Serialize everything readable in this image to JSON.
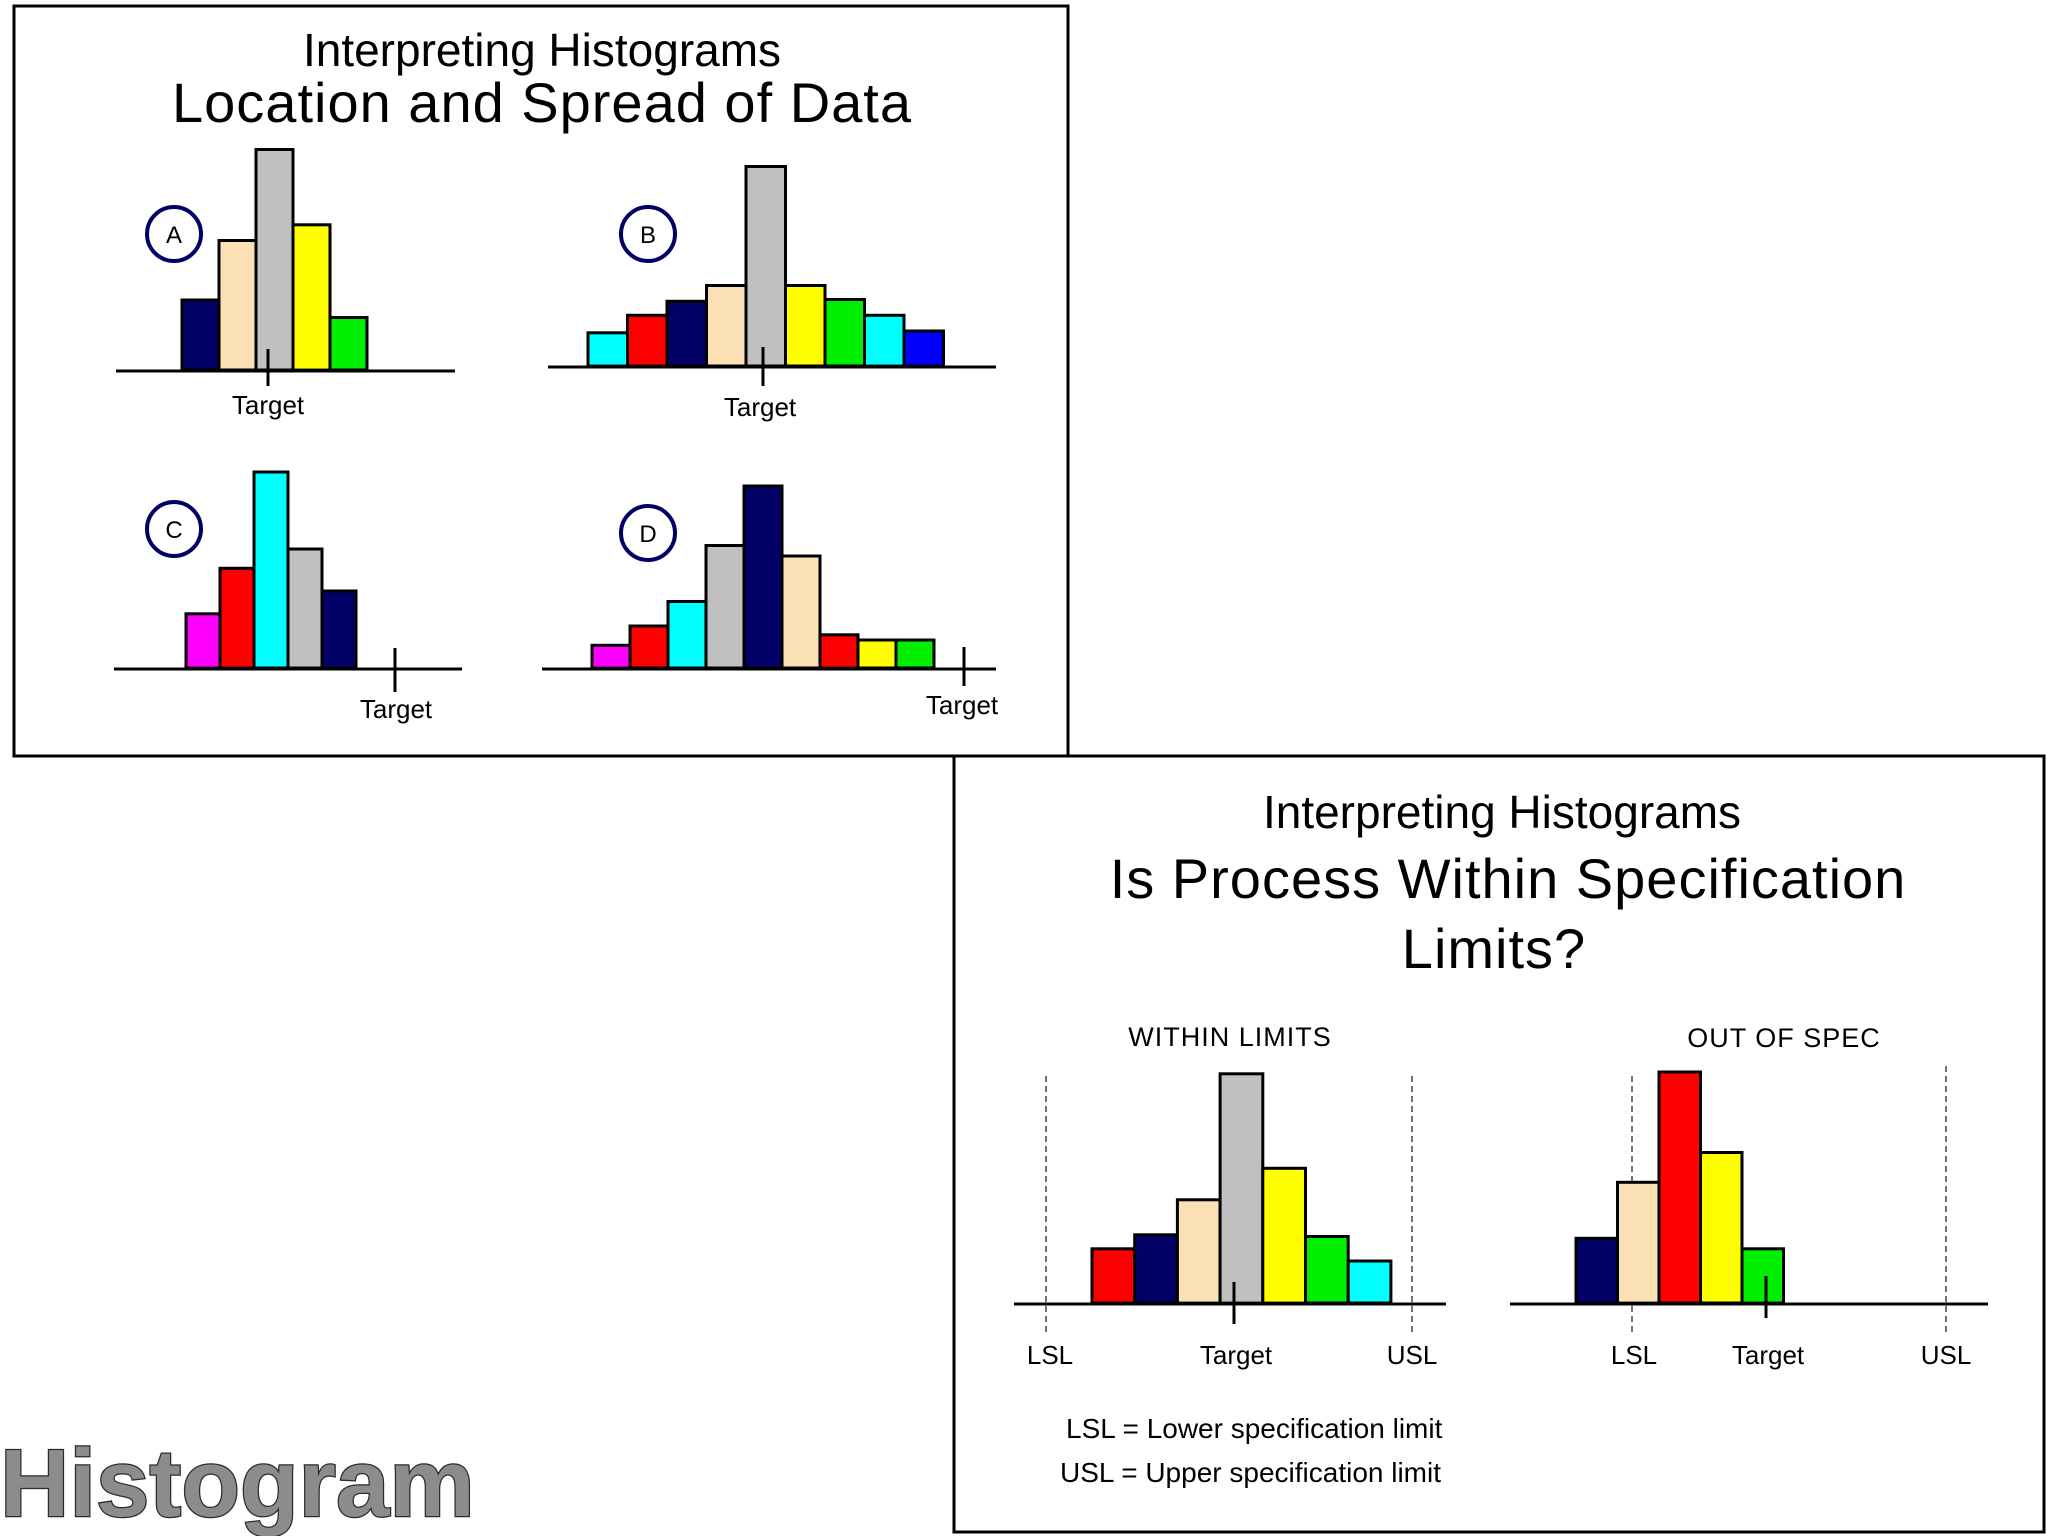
{
  "colors": {
    "navy": "#000066",
    "peach": "#fbdfb5",
    "gray": "#c0c0c0",
    "yellow": "#ffff00",
    "green": "#00ee00",
    "cyan": "#00ffff",
    "red": "#ff0000",
    "blue": "#0000ff",
    "magenta": "#ff00ff",
    "circle_stroke": "#000066",
    "brand_fill": "#8c8c8c"
  },
  "panel1": {
    "title1": "Interpreting Histograms",
    "title2": "Location and Spread of Data",
    "charts": [
      {
        "letter": "A",
        "target_label": "Target",
        "bars": [
          {
            "color": "navy",
            "value": 4
          },
          {
            "color": "peach",
            "value": 7.4
          },
          {
            "color": "gray",
            "value": 12.6
          },
          {
            "color": "yellow",
            "value": 8.3
          },
          {
            "color": "green",
            "value": 3
          }
        ]
      },
      {
        "letter": "B",
        "target_label": "Target",
        "bars": [
          {
            "color": "cyan",
            "value": 1.9
          },
          {
            "color": "red",
            "value": 2.9
          },
          {
            "color": "navy",
            "value": 3.7
          },
          {
            "color": "peach",
            "value": 4.6
          },
          {
            "color": "gray",
            "value": 11.4
          },
          {
            "color": "yellow",
            "value": 4.6
          },
          {
            "color": "green",
            "value": 3.8
          },
          {
            "color": "cyan",
            "value": 2.9
          },
          {
            "color": "blue",
            "value": 2
          }
        ]
      },
      {
        "letter": "C",
        "target_label": "Target",
        "bars": [
          {
            "color": "magenta",
            "value": 3.1
          },
          {
            "color": "red",
            "value": 5.7
          },
          {
            "color": "cyan",
            "value": 11.2
          },
          {
            "color": "gray",
            "value": 6.8
          },
          {
            "color": "navy",
            "value": 4.4
          }
        ]
      },
      {
        "letter": "D",
        "target_label": "Target",
        "bars": [
          {
            "color": "magenta",
            "value": 1.3
          },
          {
            "color": "red",
            "value": 2.4
          },
          {
            "color": "cyan",
            "value": 3.8
          },
          {
            "color": "gray",
            "value": 7
          },
          {
            "color": "navy",
            "value": 10.4
          },
          {
            "color": "peach",
            "value": 6.4
          },
          {
            "color": "red",
            "value": 1.9
          },
          {
            "color": "yellow",
            "value": 1.6
          },
          {
            "color": "green",
            "value": 1.6
          }
        ]
      }
    ]
  },
  "panel2": {
    "title1": "Interpreting Histograms",
    "title2_line1": "Is Process Within Specification",
    "title2_line2": "Limits?",
    "charts": [
      {
        "label": "WITHIN LIMITS",
        "lsl_label": "LSL",
        "target_label": "Target",
        "usl_label": "USL",
        "bars": [
          {
            "color": "red",
            "value": 3.1
          },
          {
            "color": "navy",
            "value": 3.9
          },
          {
            "color": "peach",
            "value": 5.9
          },
          {
            "color": "gray",
            "value": 13.1
          },
          {
            "color": "yellow",
            "value": 7.7
          },
          {
            "color": "green",
            "value": 3.8
          },
          {
            "color": "cyan",
            "value": 2.4
          }
        ]
      },
      {
        "label": "OUT OF SPEC",
        "lsl_label": "LSL",
        "target_label": "Target",
        "usl_label": "USL",
        "bars": [
          {
            "color": "navy",
            "value": 3.7
          },
          {
            "color": "peach",
            "value": 6.9
          },
          {
            "color": "red",
            "value": 13.2
          },
          {
            "color": "yellow",
            "value": 8.6
          },
          {
            "color": "green",
            "value": 3.1
          }
        ]
      }
    ],
    "legend": {
      "lsl": "LSL = Lower specification limit",
      "usl": "USL = Upper specification limit"
    }
  },
  "brand": {
    "text": "Histogram"
  }
}
